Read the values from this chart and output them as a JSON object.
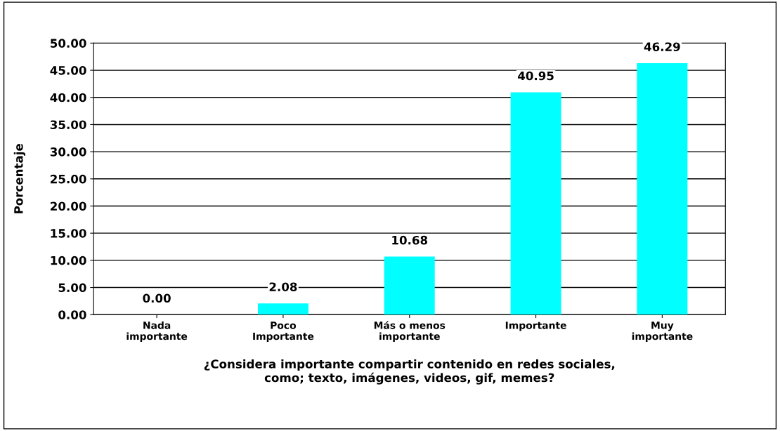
{
  "chart_data": {
    "type": "bar",
    "categories": [
      "Nada\nimportante",
      "Poco\nImportante",
      "Más o menos\nimportante",
      "Importante",
      "Muy\nimportante"
    ],
    "values": [
      0.0,
      2.08,
      10.68,
      40.95,
      46.29
    ],
    "value_labels": [
      "0.00",
      "2.08",
      "10.68",
      "40.95",
      "46.29"
    ],
    "color": "#00ffff",
    "xlabel": "¿Considera importante compartir contenido en redes sociales,\ncomo; texto, imágenes, videos, gif, memes?",
    "ylabel": "Porcentaje",
    "ylim": [
      0,
      50
    ],
    "yticks": [
      {
        "value": 0,
        "label": "0.00"
      },
      {
        "value": 5,
        "label": "5.00"
      },
      {
        "value": 10,
        "label": "10.00"
      },
      {
        "value": 15,
        "label": "15.00"
      },
      {
        "value": 20,
        "label": "20.00"
      },
      {
        "value": 25,
        "label": "25.00"
      },
      {
        "value": 30,
        "label": "30.00"
      },
      {
        "value": 35,
        "label": "35.00"
      },
      {
        "value": 40,
        "label": "40.00"
      },
      {
        "value": 45,
        "label": "45.00"
      },
      {
        "value": 50,
        "label": "50.00"
      }
    ],
    "grid": "y"
  }
}
